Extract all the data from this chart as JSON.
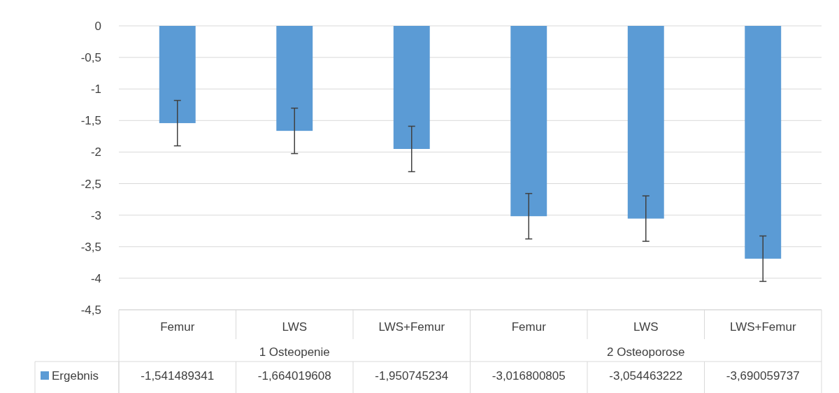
{
  "chart_data": {
    "type": "bar",
    "categories": [
      "Femur",
      "LWS",
      "LWS+Femur",
      "Femur",
      "LWS",
      "LWS+Femur"
    ],
    "annotations": [
      "1 Osteopenie",
      "2 Osteoporose"
    ],
    "series": [
      {
        "name": "Ergebnis",
        "color": "#5b9bd5",
        "values": [
          -1.541489341,
          -1.664019608,
          -1.950745234,
          -3.016800805,
          -3.054463222,
          -3.690059737
        ],
        "errors": [
          0.36,
          0.36,
          0.36,
          0.36,
          0.36,
          0.36
        ],
        "value_labels": [
          "-1,541489341",
          "-1,664019608",
          "-1,950745234",
          "-3,016800805",
          "-3,054463222",
          "-3,690059737"
        ]
      }
    ],
    "ylim": [
      -4.5,
      0
    ],
    "yticks": [
      0,
      {
        "value": -0.5,
        "label": "-0,5"
      },
      -1,
      {
        "value": -1.5,
        "label": "-1,5"
      },
      -2,
      {
        "value": -2.5,
        "label": "-2,5"
      },
      -3,
      {
        "value": -3.5,
        "label": "-3,5"
      },
      -4,
      {
        "value": -4.5,
        "label": "-4,5"
      }
    ],
    "grid": "y",
    "legend": "bottom"
  }
}
